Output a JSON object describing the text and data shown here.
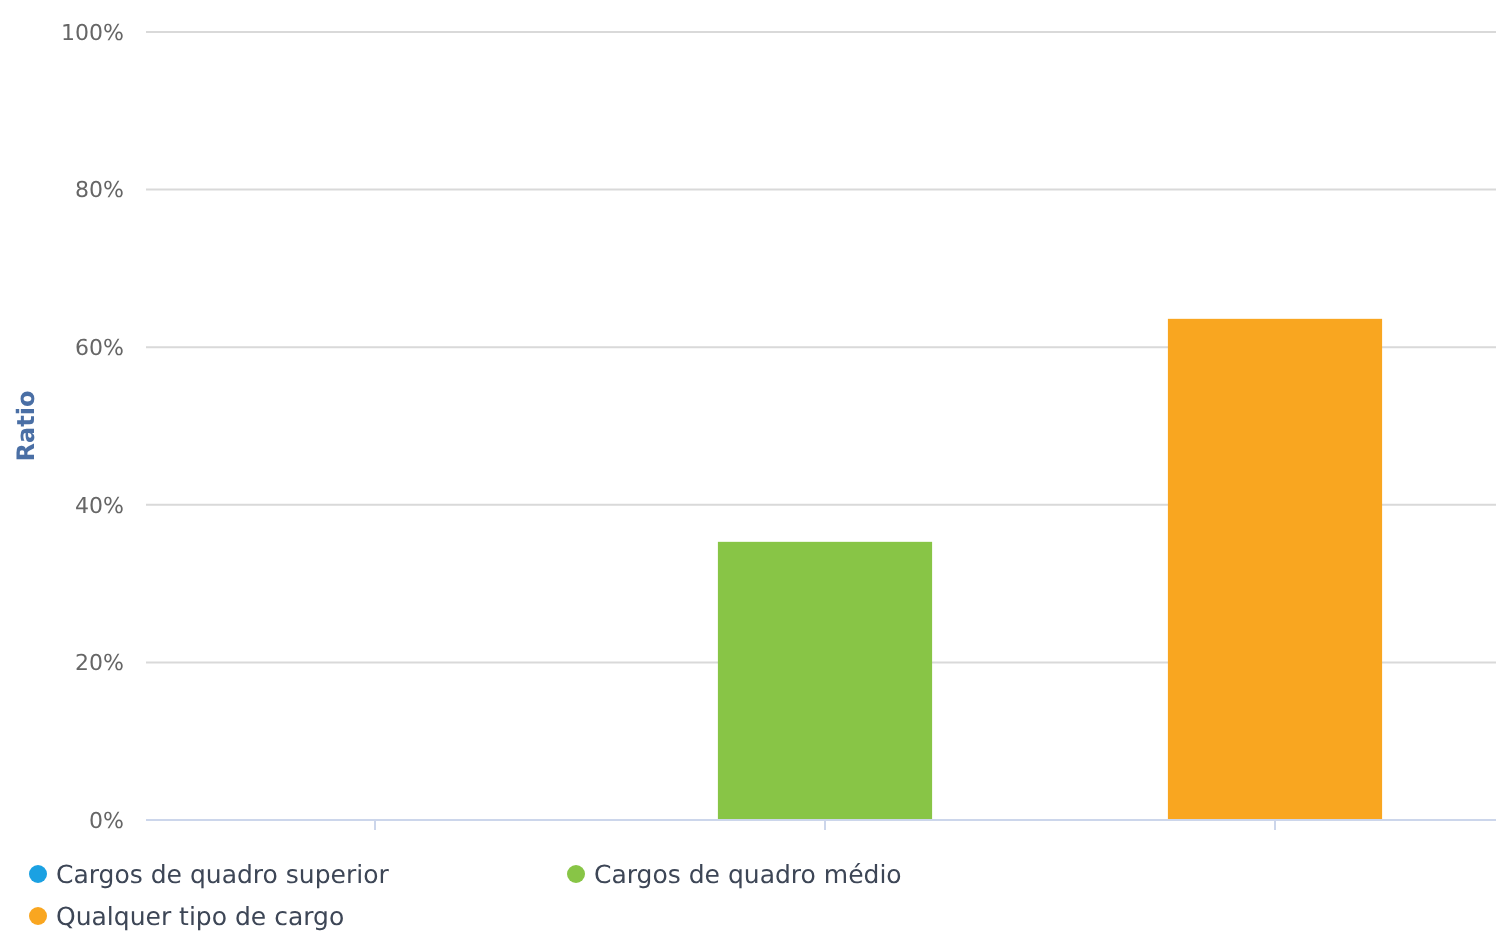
{
  "chart_data": {
    "type": "bar",
    "ylabel": "Ratio",
    "categories": [
      null,
      null,
      null
    ],
    "series": [
      {
        "name": "Cargos de quadro superior",
        "color": "#1ba1e2",
        "values": [
          0,
          null,
          null
        ]
      },
      {
        "name": "Cargos de quadro médio",
        "color": "#88c546",
        "values": [
          null,
          35.3,
          null
        ]
      },
      {
        "name": "Qualquer tipo de cargo",
        "color": "#f9a620",
        "values": [
          null,
          null,
          63.6
        ]
      }
    ],
    "ylim": [
      0,
      100
    ],
    "yticks": [
      {
        "value": 0,
        "label": "0%"
      },
      {
        "value": 20,
        "label": "20%"
      },
      {
        "value": 40,
        "label": "40%"
      },
      {
        "value": 60,
        "label": "60%"
      },
      {
        "value": 80,
        "label": "80%"
      },
      {
        "value": 100,
        "label": "100%"
      }
    ],
    "grid": "y",
    "legend": "bottom"
  }
}
